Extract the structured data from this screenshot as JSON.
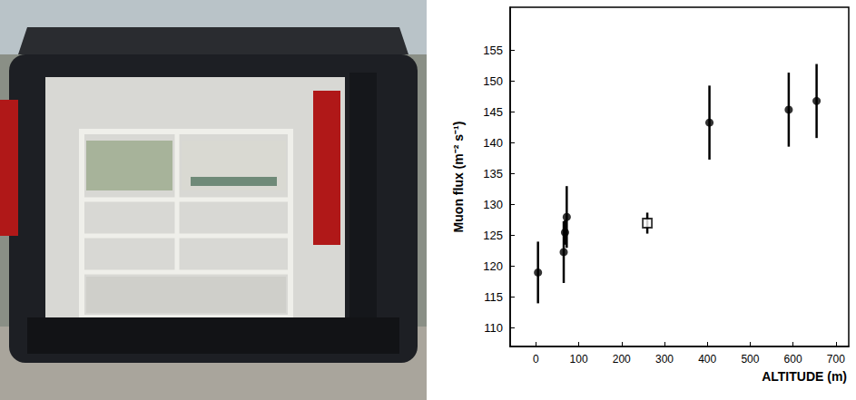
{
  "chart_data": {
    "type": "scatter",
    "xlabel": "ALTITUDE (m)",
    "ylabel": "Muon flux (m⁻² s⁻¹)",
    "xlim": [
      -60,
      730
    ],
    "xticks": [
      0,
      100,
      200,
      300,
      400,
      500,
      600,
      700
    ],
    "ylim": [
      107,
      162
    ],
    "yticks": [
      110,
      115,
      120,
      125,
      130,
      135,
      140,
      145,
      150,
      155
    ],
    "grid": false,
    "series": [
      {
        "marker": "circle",
        "color": "#000000",
        "x": [
          5,
          65,
          68,
          72,
          405,
          590,
          655
        ],
        "values": [
          119,
          122.3,
          125.5,
          128,
          143.3,
          145.4,
          146.8
        ],
        "errors": [
          5,
          5,
          2,
          5,
          6,
          6,
          6
        ]
      },
      {
        "marker": "open_square",
        "color": "#000000",
        "x": [
          260
        ],
        "values": [
          127
        ],
        "errors": [
          1.7
        ]
      }
    ]
  }
}
